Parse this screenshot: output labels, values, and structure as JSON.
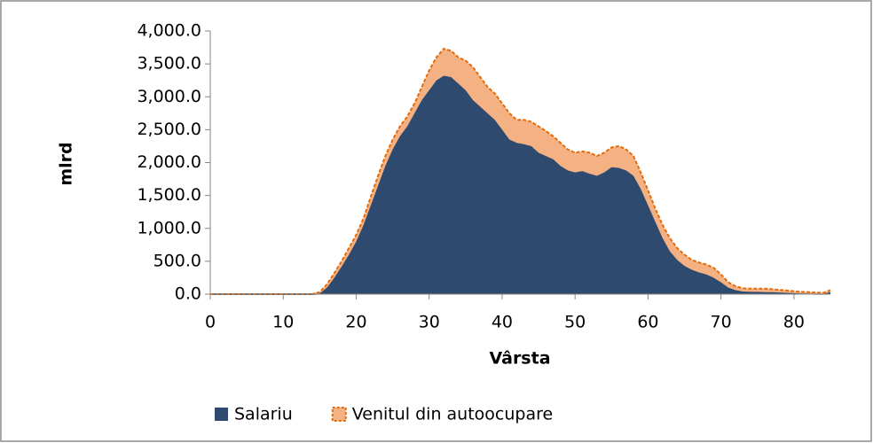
{
  "chart_data": {
    "type": "stacked_area",
    "y_label": "mlrd",
    "x_label": "Vârsta",
    "x": [
      0,
      1,
      2,
      3,
      4,
      5,
      6,
      7,
      8,
      9,
      10,
      11,
      12,
      13,
      14,
      15,
      16,
      17,
      18,
      19,
      20,
      21,
      22,
      23,
      24,
      25,
      26,
      27,
      28,
      29,
      30,
      31,
      32,
      33,
      34,
      35,
      36,
      37,
      38,
      39,
      40,
      41,
      42,
      43,
      44,
      45,
      46,
      47,
      48,
      49,
      50,
      51,
      52,
      53,
      54,
      55,
      56,
      57,
      58,
      59,
      60,
      61,
      62,
      63,
      64,
      65,
      66,
      67,
      68,
      69,
      70,
      71,
      72,
      73,
      74,
      75,
      76,
      77,
      78,
      79,
      80,
      81,
      82,
      83,
      84,
      85
    ],
    "series": [
      {
        "name": "Salariu",
        "color": "#2e4a6e",
        "values": [
          0,
          0,
          0,
          0,
          0,
          0,
          0,
          0,
          0,
          0,
          0,
          0,
          0,
          0,
          0,
          10,
          100,
          250,
          420,
          600,
          800,
          1050,
          1350,
          1650,
          1950,
          2200,
          2400,
          2550,
          2750,
          2950,
          3100,
          3250,
          3320,
          3300,
          3200,
          3100,
          2950,
          2850,
          2750,
          2650,
          2500,
          2350,
          2300,
          2280,
          2250,
          2150,
          2100,
          2050,
          1950,
          1880,
          1850,
          1870,
          1830,
          1800,
          1850,
          1930,
          1920,
          1880,
          1800,
          1600,
          1350,
          1100,
          850,
          650,
          520,
          430,
          370,
          330,
          300,
          250,
          180,
          100,
          60,
          40,
          35,
          35,
          30,
          30,
          25,
          20,
          15,
          10,
          8,
          5,
          5,
          30
        ]
      },
      {
        "name": "Venitul din autoocupare",
        "color": "#f4b183",
        "stroke": "#e46c0a",
        "values": [
          0,
          0,
          0,
          0,
          0,
          0,
          0,
          0,
          0,
          0,
          0,
          0,
          0,
          0,
          0,
          20,
          50,
          70,
          80,
          100,
          100,
          100,
          130,
          150,
          150,
          150,
          150,
          150,
          150,
          200,
          300,
          350,
          410,
          400,
          400,
          450,
          500,
          450,
          400,
          400,
          400,
          400,
          350,
          370,
          370,
          400,
          380,
          350,
          350,
          320,
          300,
          300,
          320,
          300,
          300,
          300,
          330,
          320,
          300,
          250,
          230,
          200,
          200,
          200,
          180,
          170,
          150,
          150,
          150,
          150,
          120,
          80,
          60,
          50,
          50,
          50,
          55,
          45,
          40,
          35,
          30,
          25,
          22,
          20,
          15,
          30
        ]
      }
    ],
    "xlim": [
      0,
      85
    ],
    "xticks": [
      0,
      10,
      20,
      30,
      40,
      50,
      60,
      70,
      80
    ],
    "ylim": [
      0,
      4000
    ],
    "yticks": [
      {
        "value": 0,
        "label": "0.0"
      },
      {
        "value": 500,
        "label": "500.0"
      },
      {
        "value": 1000,
        "label": "1,000.0"
      },
      {
        "value": 1500,
        "label": "1,500.0"
      },
      {
        "value": 2000,
        "label": "2,000.0"
      },
      {
        "value": 2500,
        "label": "2,500.0"
      },
      {
        "value": 3000,
        "label": "3,000.0"
      },
      {
        "value": 3500,
        "label": "3,500.0"
      },
      {
        "value": 4000,
        "label": "4,000.0"
      }
    ],
    "legend": "bottom"
  }
}
